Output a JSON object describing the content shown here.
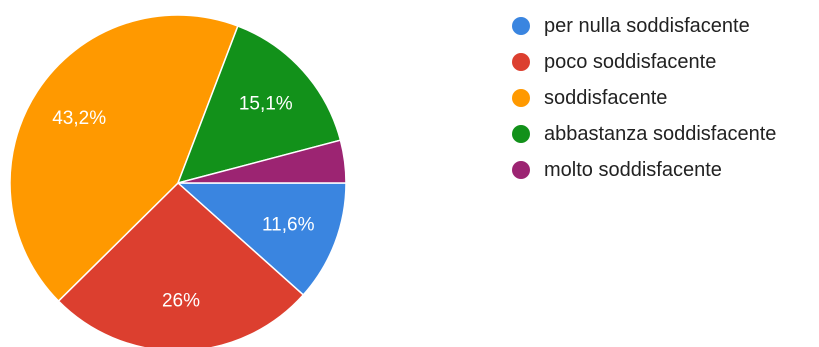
{
  "chart_data": {
    "type": "pie",
    "legend_position": "right",
    "start_angle": "90deg clockwise (3 o'clock)",
    "slices": [
      {
        "name": "per nulla soddisfacente",
        "value": 11.6,
        "label": "11,6%",
        "color": "#3a85e0"
      },
      {
        "name": "poco soddisfacente",
        "value": 26,
        "label": "26%",
        "color": "#dc3f2f"
      },
      {
        "name": "soddisfacente",
        "value": 43.2,
        "label": "43,2%",
        "color": "#ff9900"
      },
      {
        "name": "abbastanza soddisfacente",
        "value": 15.1,
        "label": "15,1%",
        "color": "#12911a"
      },
      {
        "name": "molto soddisfacente",
        "value": 4.1,
        "label": "",
        "color": "#9c2472"
      }
    ]
  }
}
